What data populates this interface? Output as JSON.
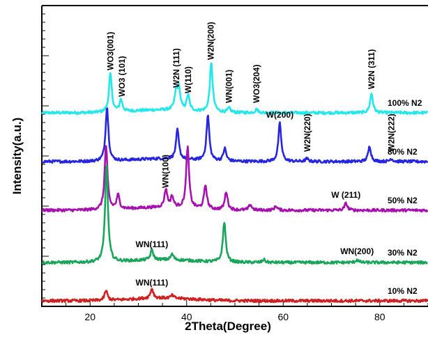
{
  "chart_data": {
    "type": "line",
    "title": "",
    "xlabel": "2Theta(Degree)",
    "ylabel": "Intensity(a.u.)",
    "xlim": [
      10,
      90
    ],
    "x_ticks": [
      20,
      40,
      60,
      80
    ],
    "tick_labels": [
      "20",
      "40",
      "60",
      "80"
    ],
    "y_ticks_shown": false,
    "grid": false,
    "series": [
      {
        "name": "100% N2",
        "color": "#22e8ec",
        "offset": 270,
        "peaks": [
          [
            24.2,
            55
          ],
          [
            26.4,
            17
          ],
          [
            37.8,
            24
          ],
          [
            38.4,
            30
          ],
          [
            40.3,
            22
          ],
          [
            45.1,
            70
          ],
          [
            48.8,
            6
          ],
          [
            54.5,
            5
          ],
          [
            78.3,
            28
          ]
        ]
      },
      {
        "name": "80% N2",
        "color": "#2626e0",
        "offset": 200,
        "peaks": [
          [
            23.5,
            78
          ],
          [
            38.1,
            42
          ],
          [
            44.4,
            65
          ],
          [
            47.9,
            18
          ],
          [
            59.3,
            55
          ],
          [
            64.9,
            4
          ],
          [
            77.9,
            22
          ],
          [
            82.4,
            4
          ]
        ]
      },
      {
        "name": "50% N2",
        "color": "#a712ae",
        "offset": 130,
        "peaks": [
          [
            23.3,
            92
          ],
          [
            25.8,
            20
          ],
          [
            35.7,
            26
          ],
          [
            37.0,
            15
          ],
          [
            40.2,
            88
          ],
          [
            43.9,
            34
          ],
          [
            48.2,
            26
          ],
          [
            53.2,
            8
          ],
          [
            58.5,
            6
          ],
          [
            73.0,
            10
          ]
        ]
      },
      {
        "name": "30% N2",
        "color": "#1aa65a",
        "offset": 55,
        "peaks": [
          [
            23.4,
            140
          ],
          [
            32.8,
            14
          ],
          [
            37.0,
            8
          ],
          [
            47.8,
            58
          ],
          [
            56.0,
            4
          ],
          [
            75.3,
            4
          ]
        ]
      },
      {
        "name": "10% N2",
        "color": "#d02020",
        "offset": 0,
        "peaks": [
          [
            23.3,
            14
          ],
          [
            32.8,
            14
          ],
          [
            37.0,
            4
          ]
        ]
      }
    ],
    "annotations": [
      {
        "text": "WO3(001)",
        "x": 24.2,
        "series": 0
      },
      {
        "text": "WO3 (101)",
        "x": 26.6,
        "series": 0
      },
      {
        "text": "W2N (111)",
        "x": 37.9,
        "series": 0
      },
      {
        "text": "W(110)",
        "x": 40.3,
        "series": 0
      },
      {
        "text": "W2N(200)",
        "x": 45.0,
        "series": 0
      },
      {
        "text": "WN(001)",
        "x": 48.8,
        "series": 0
      },
      {
        "text": "WO3(204)",
        "x": 54.5,
        "series": 0
      },
      {
        "text": "W2N (311)",
        "x": 78.3,
        "series": 0
      },
      {
        "text": "W(200)",
        "x": 59.3,
        "series": 1,
        "horizontal": true
      },
      {
        "text": "W2N(220)",
        "x": 65.0,
        "series": 1
      },
      {
        "text": "W2N(222)",
        "x": 82.4,
        "series": 1
      },
      {
        "text": "WN(100)",
        "x": 35.6,
        "series": 2
      },
      {
        "text": "W (211)",
        "x": 73.0,
        "series": 2,
        "horizontal": true
      },
      {
        "text": "WN(111)",
        "x": 32.8,
        "series": 3,
        "horizontal": true
      },
      {
        "text": "WN(200)",
        "x": 75.3,
        "series": 3,
        "horizontal": true
      },
      {
        "text": "WN(111)",
        "x": 32.8,
        "series": 4,
        "horizontal": true
      }
    ],
    "series_labels": [
      "100%  N2",
      "80%  N2",
      "50%  N2",
      "30%  N2",
      "10%  N2"
    ]
  }
}
